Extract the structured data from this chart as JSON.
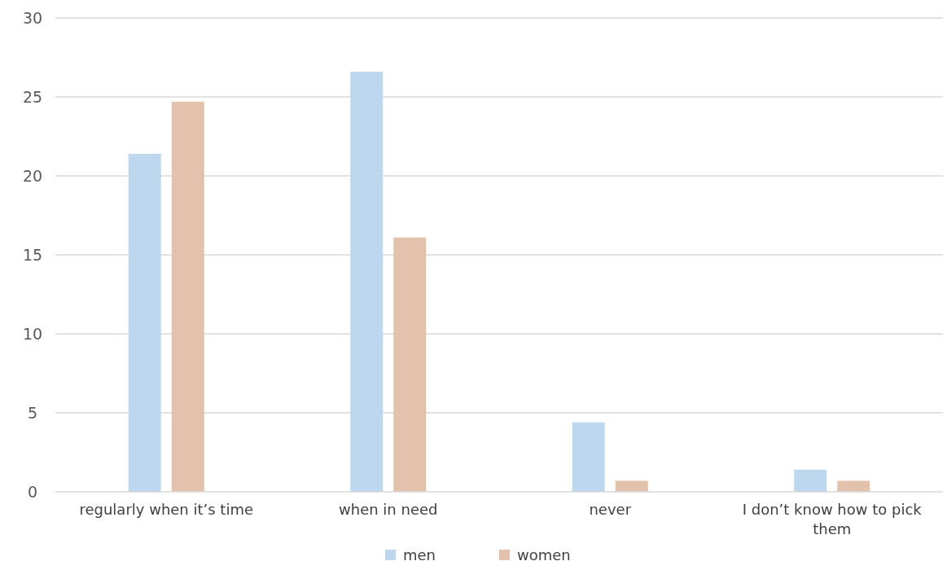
{
  "chart_data": {
    "type": "bar",
    "categories": [
      "regularly when it’s time",
      "when in need",
      "never",
      "I don’t know how to pick them"
    ],
    "series": [
      {
        "name": "men",
        "color": "#bdd7ee",
        "values": [
          21.4,
          26.6,
          4.4,
          1.4
        ]
      },
      {
        "name": "women",
        "color": "#e2c2ad",
        "values": [
          24.7,
          16.1,
          0.7,
          0.7
        ]
      }
    ],
    "ylim": [
      0,
      30
    ],
    "yticks": [
      0,
      5,
      10,
      15,
      20,
      25,
      30
    ],
    "grid": "y",
    "legend": "bottom"
  }
}
